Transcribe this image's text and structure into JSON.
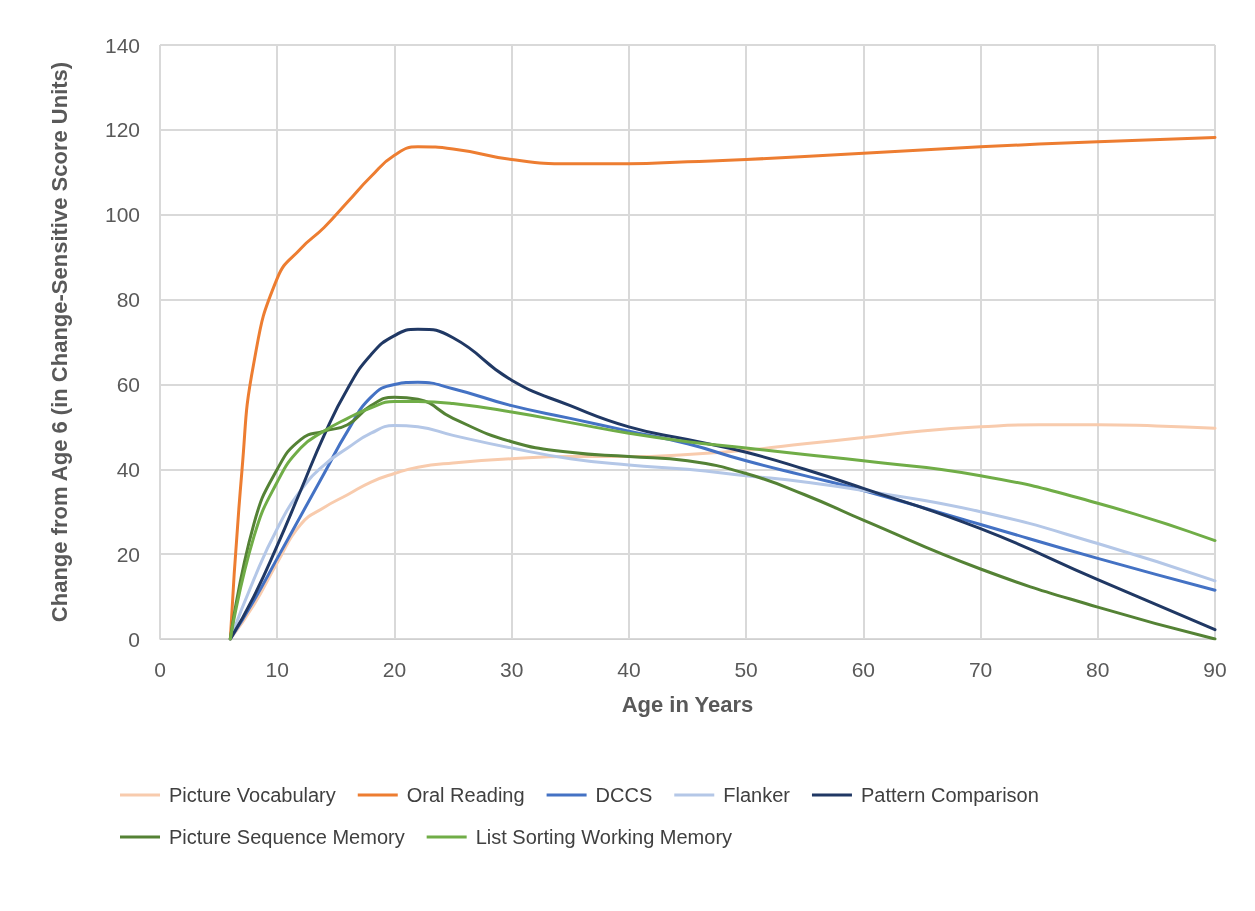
{
  "chart_data": {
    "type": "line",
    "xlabel": "Age in Years",
    "ylabel": "Change from Age 6 (in Change-Sensitive Score Units)",
    "xlim": [
      0,
      90
    ],
    "xticks": [
      0,
      10,
      20,
      30,
      40,
      50,
      60,
      70,
      80,
      90
    ],
    "ylim": [
      0,
      140
    ],
    "yticks": [
      0,
      20,
      40,
      60,
      80,
      100,
      120,
      140
    ],
    "grid": true,
    "legend": "bottom",
    "marker": "none",
    "line_style": "solid",
    "series": [
      {
        "name": "Picture Vocabulary",
        "color": "#f8cbad",
        "x": [
          6,
          8,
          10,
          12,
          14,
          16,
          18,
          20,
          22,
          25,
          30,
          35,
          40,
          45,
          50,
          55,
          60,
          65,
          70,
          75,
          80,
          85,
          90
        ],
        "values": [
          0,
          8,
          18,
          27,
          31,
          34,
          37,
          39,
          40.5,
          41.5,
          42.5,
          43,
          43,
          43.5,
          44.5,
          46,
          47.5,
          49,
          50,
          50.5,
          50.5,
          50.2,
          49.7
        ]
      },
      {
        "name": "Oral Reading",
        "color": "#ed7d31",
        "x": [
          6,
          7,
          8,
          10,
          12,
          14,
          16,
          18,
          20,
          22,
          25,
          30,
          35,
          40,
          45,
          50,
          60,
          70,
          80,
          90
        ],
        "values": [
          0,
          40,
          65,
          85,
          92,
          97,
          103,
          109,
          114,
          116,
          115.5,
          113,
          112,
          112,
          112.5,
          113,
          114.5,
          116,
          117.2,
          118.2
        ]
      },
      {
        "name": "DCCS",
        "color": "#4472c4",
        "x": [
          6,
          8,
          10,
          12,
          14,
          16,
          18,
          20,
          22,
          25,
          30,
          35,
          40,
          45,
          50,
          55,
          60,
          70,
          80,
          90
        ],
        "values": [
          0,
          9,
          19,
          29,
          39,
          49,
          57,
          60,
          60.5,
          59,
          55,
          52,
          49,
          46,
          42,
          38.5,
          35,
          27,
          19,
          11.5
        ]
      },
      {
        "name": "Flanker",
        "color": "#b4c7e7",
        "x": [
          6,
          8,
          10,
          12,
          14,
          16,
          18,
          20,
          22,
          25,
          30,
          35,
          40,
          45,
          50,
          55,
          60,
          70,
          80,
          90
        ],
        "values": [
          0,
          14,
          26,
          35,
          41,
          45,
          48.5,
          50.3,
          50,
          48,
          45,
          42.5,
          41,
          40,
          38.5,
          37,
          35,
          30,
          22.5,
          13.7
        ]
      },
      {
        "name": "Pattern Comparison",
        "color": "#203864",
        "x": [
          6,
          8,
          10,
          12,
          14,
          16,
          18,
          20,
          22,
          25,
          30,
          35,
          40,
          45,
          50,
          55,
          60,
          70,
          80,
          90
        ],
        "values": [
          0,
          10,
          22,
          35,
          48,
          59,
          67,
          71.5,
          73,
          71,
          61,
          55,
          50,
          47,
          44,
          40,
          35.5,
          26,
          14,
          2.2
        ]
      },
      {
        "name": "Picture Sequence Memory",
        "color": "#548235",
        "x": [
          6,
          8,
          10,
          12,
          14,
          16,
          18,
          20,
          22,
          25,
          30,
          35,
          40,
          45,
          50,
          55,
          60,
          70,
          80,
          90
        ],
        "values": [
          0,
          27,
          40,
          47,
          49,
          50.5,
          55,
          57,
          56.5,
          52,
          46.5,
          44,
          43,
          42,
          39,
          34,
          28,
          16.5,
          7.5,
          0
        ]
      },
      {
        "name": "List Sorting Working Memory",
        "color": "#70ad47",
        "x": [
          6,
          8,
          10,
          12,
          14,
          16,
          18,
          20,
          22,
          25,
          30,
          35,
          40,
          45,
          50,
          55,
          60,
          70,
          80,
          90
        ],
        "values": [
          0,
          24,
          37,
          45,
          49,
          52,
          54.5,
          56,
          56,
          55.5,
          53.5,
          51,
          48.5,
          46.5,
          45,
          43.5,
          42,
          38.5,
          32,
          23.2
        ]
      }
    ]
  }
}
